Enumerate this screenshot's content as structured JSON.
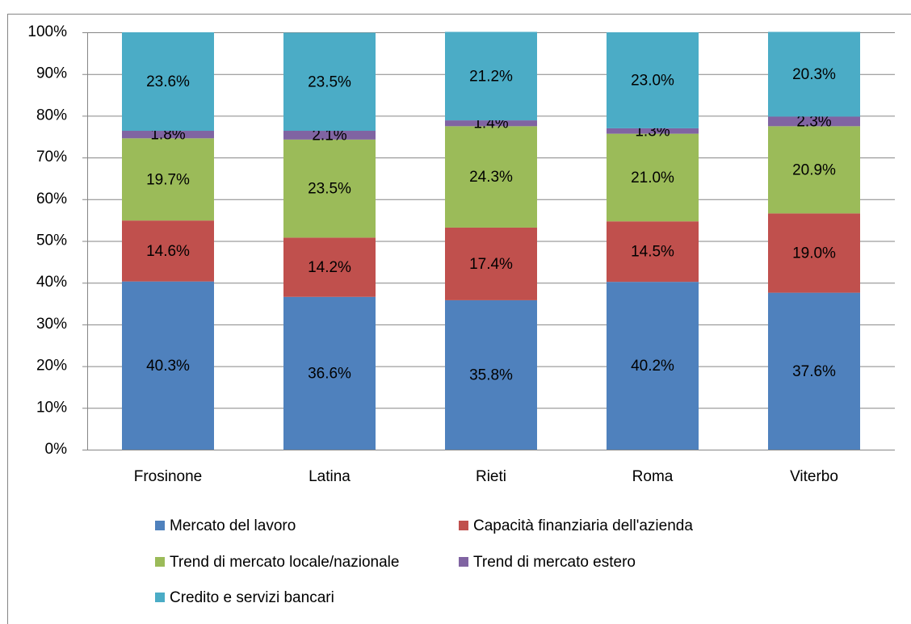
{
  "chart_data": {
    "type": "stacked_bar",
    "categories": [
      "Frosinone",
      "Latina",
      "Rieti",
      "Roma",
      "Viterbo"
    ],
    "series": [
      {
        "name": "Mercato del lavoro",
        "color": "#4f81bd",
        "values": [
          40.3,
          36.6,
          35.8,
          40.2,
          37.6
        ],
        "value_labels": [
          "40.3%",
          "36.6%",
          "35.8%",
          "40.2%",
          "37.6%"
        ]
      },
      {
        "name": "Capacità finanziaria dell'azienda",
        "color": "#c0504d",
        "values": [
          14.6,
          14.2,
          17.4,
          14.5,
          19.0
        ],
        "value_labels": [
          "14.6%",
          "14.2%",
          "17.4%",
          "14.5%",
          "19.0%"
        ]
      },
      {
        "name": "Trend di mercato locale/nazionale",
        "color": "#9bbb59",
        "values": [
          19.7,
          23.5,
          24.3,
          21.0,
          20.9
        ],
        "value_labels": [
          "19.7%",
          "23.5%",
          "24.3%",
          "21.0%",
          "20.9%"
        ]
      },
      {
        "name": "Trend di mercato estero",
        "color": "#8064a2",
        "values": [
          1.8,
          2.1,
          1.4,
          1.3,
          2.3
        ],
        "value_labels": [
          "1.8%",
          "2.1%",
          "1.4%",
          "1.3%",
          "2.3%"
        ]
      },
      {
        "name": "Credito e servizi bancari",
        "color": "#4bacc6",
        "values": [
          23.6,
          23.5,
          21.2,
          23.0,
          20.3
        ],
        "value_labels": [
          "23.6%",
          "23.5%",
          "21.2%",
          "23.0%",
          "20.3%"
        ]
      }
    ],
    "ylim": [
      0,
      100
    ],
    "yticks": [
      {
        "value": 0,
        "label": "0%"
      },
      {
        "value": 10,
        "label": "10%"
      },
      {
        "value": 20,
        "label": "20%"
      },
      {
        "value": 30,
        "label": "30%"
      },
      {
        "value": 40,
        "label": "40%"
      },
      {
        "value": 50,
        "label": "50%"
      },
      {
        "value": 60,
        "label": "60%"
      },
      {
        "value": 70,
        "label": "70%"
      },
      {
        "value": 80,
        "label": "80%"
      },
      {
        "value": 90,
        "label": "90%"
      },
      {
        "value": 100,
        "label": "100%"
      }
    ],
    "grid": true
  }
}
